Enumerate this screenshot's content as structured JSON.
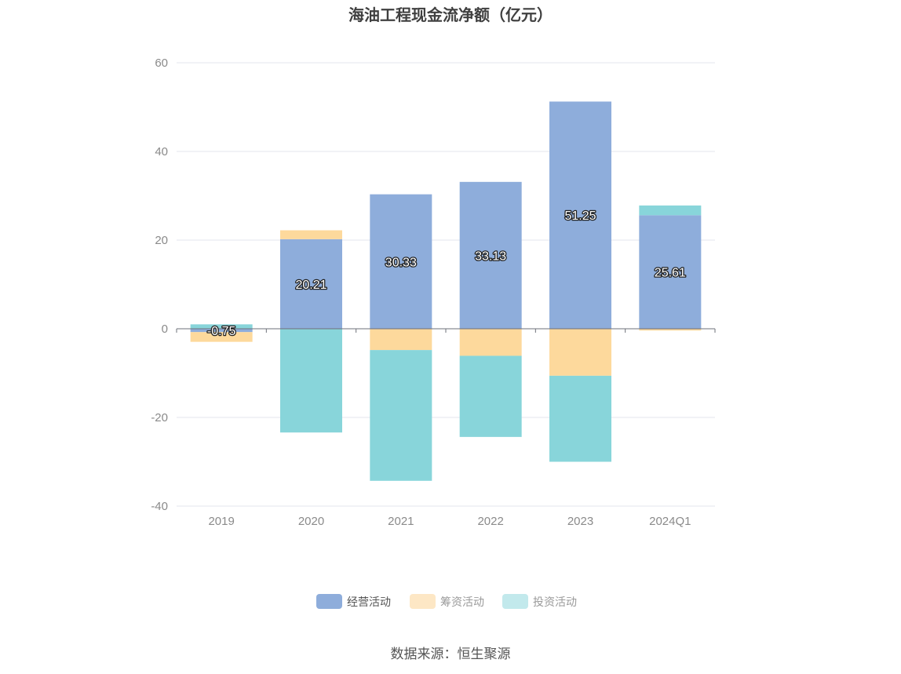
{
  "chart_data": {
    "type": "bar",
    "stacked": true,
    "title": "海油工程现金流净额（亿元）",
    "categories": [
      "2019",
      "2020",
      "2021",
      "2022",
      "2023",
      "2024Q1"
    ],
    "series": [
      {
        "name": "经营活动",
        "color": "#8eaddb",
        "values": [
          -0.75,
          20.21,
          30.33,
          33.13,
          51.25,
          25.61
        ]
      },
      {
        "name": "筹资活动",
        "color": "#fdd99c",
        "values": [
          -2.2,
          2.0,
          -4.8,
          -6.1,
          -10.6,
          -0.4
        ]
      },
      {
        "name": "投资活动",
        "color": "#88d5da",
        "values": [
          1.0,
          -23.4,
          -29.5,
          -18.3,
          -19.4,
          2.2
        ]
      }
    ],
    "data_labels": [
      "-0.75",
      "20.21",
      "30.33",
      "33.13",
      "51.25",
      "25.61"
    ],
    "y_ticks": [
      "60",
      "40",
      "20",
      "0",
      "-20",
      "-40"
    ],
    "ylim": [
      -40,
      60
    ],
    "grid": true,
    "legend_position": "bottom",
    "legend_colors": [
      "#8eaddb",
      "#fde7c5",
      "#c2e9ec"
    ],
    "source": "数据来源：恒生聚源"
  }
}
